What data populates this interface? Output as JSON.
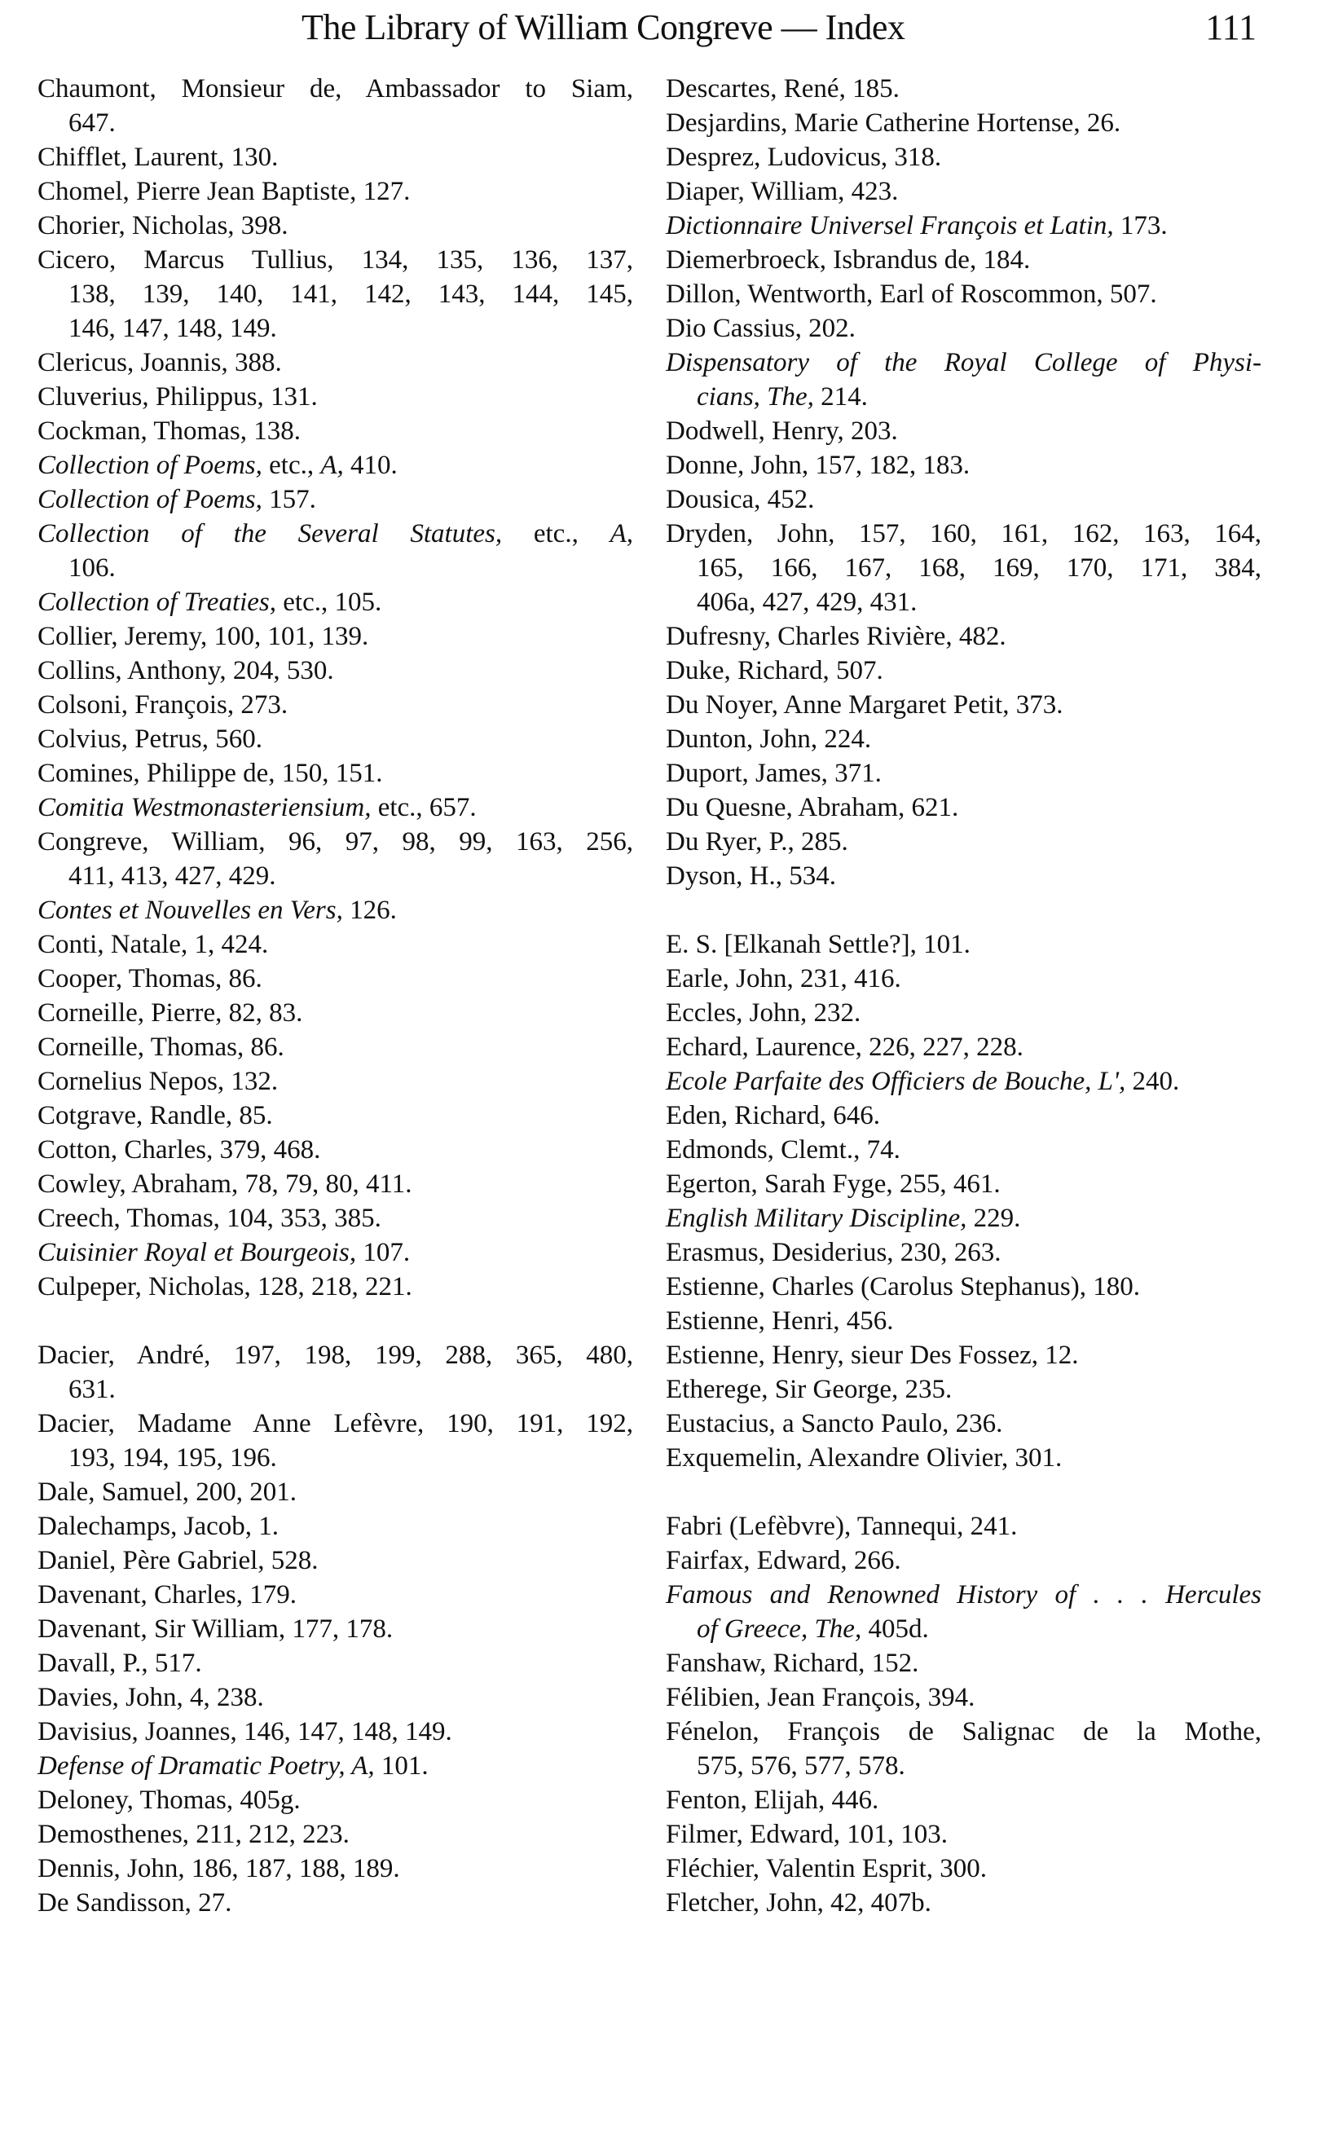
{
  "header": {
    "title": "The Library of William Congreve — Index",
    "page_number": "111"
  },
  "columns": {
    "left": [
      {
        "cont": false,
        "segs": [
          [
            "Chaumont, Monsieur de, Ambassador to Siam,",
            false
          ]
        ]
      },
      {
        "cont": true,
        "segs": [
          [
            "647.",
            false
          ]
        ]
      },
      {
        "cont": false,
        "segs": [
          [
            "Chifflet, Laurent, 130.",
            false
          ]
        ]
      },
      {
        "cont": false,
        "segs": [
          [
            "Chomel, Pierre Jean Baptiste, 127.",
            false
          ]
        ]
      },
      {
        "cont": false,
        "segs": [
          [
            "Chorier, Nicholas, 398.",
            false
          ]
        ]
      },
      {
        "cont": false,
        "segs": [
          [
            "Cicero, Marcus Tullius, 134, 135, 136, 137,",
            false
          ]
        ]
      },
      {
        "cont": true,
        "segs": [
          [
            "138, 139, 140, 141, 142, 143, 144, 145,",
            false
          ]
        ]
      },
      {
        "cont": true,
        "segs": [
          [
            "146, 147, 148, 149.",
            false
          ]
        ]
      },
      {
        "cont": false,
        "segs": [
          [
            "Clericus, Joannis, 388.",
            false
          ]
        ]
      },
      {
        "cont": false,
        "segs": [
          [
            "Cluverius, Philippus, 131.",
            false
          ]
        ]
      },
      {
        "cont": false,
        "segs": [
          [
            "Cockman, Thomas, 138.",
            false
          ]
        ]
      },
      {
        "cont": false,
        "segs": [
          [
            "Collection of Poems,",
            true
          ],
          [
            " etc., ",
            false
          ],
          [
            "A,",
            true
          ],
          [
            " 410.",
            false
          ]
        ]
      },
      {
        "cont": false,
        "segs": [
          [
            "Collection of Poems,",
            true
          ],
          [
            " 157.",
            false
          ]
        ]
      },
      {
        "cont": false,
        "segs": [
          [
            "Collection of the Several Statutes,",
            true
          ],
          [
            " etc., ",
            false
          ],
          [
            "A,",
            true
          ]
        ]
      },
      {
        "cont": true,
        "segs": [
          [
            "106.",
            false
          ]
        ]
      },
      {
        "cont": false,
        "segs": [
          [
            "Collection of Treaties,",
            true
          ],
          [
            " etc., 105.",
            false
          ]
        ]
      },
      {
        "cont": false,
        "segs": [
          [
            "Collier, Jeremy, 100, 101, 139.",
            false
          ]
        ]
      },
      {
        "cont": false,
        "segs": [
          [
            "Collins, Anthony, 204, 530.",
            false
          ]
        ]
      },
      {
        "cont": false,
        "segs": [
          [
            "Colsoni, François, 273.",
            false
          ]
        ]
      },
      {
        "cont": false,
        "segs": [
          [
            "Colvius, Petrus, 560.",
            false
          ]
        ]
      },
      {
        "cont": false,
        "segs": [
          [
            "Comines, Philippe de, 150, 151.",
            false
          ]
        ]
      },
      {
        "cont": false,
        "segs": [
          [
            "Comitia Westmonasteriensium,",
            true
          ],
          [
            " etc., 657.",
            false
          ]
        ]
      },
      {
        "cont": false,
        "segs": [
          [
            "Congreve, William, 96, 97, 98, 99, 163, 256,",
            false
          ]
        ]
      },
      {
        "cont": true,
        "segs": [
          [
            "411, 413, 427, 429.",
            false
          ]
        ]
      },
      {
        "cont": false,
        "segs": [
          [
            "Contes et Nouvelles en Vers,",
            true
          ],
          [
            " 126.",
            false
          ]
        ]
      },
      {
        "cont": false,
        "segs": [
          [
            "Conti, Natale, 1, 424.",
            false
          ]
        ]
      },
      {
        "cont": false,
        "segs": [
          [
            "Cooper, Thomas, 86.",
            false
          ]
        ]
      },
      {
        "cont": false,
        "segs": [
          [
            "Corneille, Pierre, 82, 83.",
            false
          ]
        ]
      },
      {
        "cont": false,
        "segs": [
          [
            "Corneille, Thomas, 86.",
            false
          ]
        ]
      },
      {
        "cont": false,
        "segs": [
          [
            "Cornelius Nepos, 132.",
            false
          ]
        ]
      },
      {
        "cont": false,
        "segs": [
          [
            "Cotgrave, Randle, 85.",
            false
          ]
        ]
      },
      {
        "cont": false,
        "segs": [
          [
            "Cotton, Charles, 379, 468.",
            false
          ]
        ]
      },
      {
        "cont": false,
        "segs": [
          [
            "Cowley, Abraham, 78, 79, 80, 411.",
            false
          ]
        ]
      },
      {
        "cont": false,
        "segs": [
          [
            "Creech, Thomas, 104, 353, 385.",
            false
          ]
        ]
      },
      {
        "cont": false,
        "segs": [
          [
            "Cuisinier Royal et Bourgeois,",
            true
          ],
          [
            " 107.",
            false
          ]
        ]
      },
      {
        "cont": false,
        "segs": [
          [
            "Culpeper, Nicholas, 128, 218, 221.",
            false
          ]
        ]
      },
      {
        "cont": false,
        "segs": []
      },
      {
        "cont": false,
        "segs": [
          [
            "Dacier, André, 197, 198, 199, 288, 365, 480,",
            false
          ]
        ]
      },
      {
        "cont": true,
        "segs": [
          [
            "631.",
            false
          ]
        ]
      },
      {
        "cont": false,
        "segs": [
          [
            "Dacier, Madame Anne Lefèvre, 190, 191, 192,",
            false
          ]
        ]
      },
      {
        "cont": true,
        "segs": [
          [
            "193, 194, 195, 196.",
            false
          ]
        ]
      },
      {
        "cont": false,
        "segs": [
          [
            "Dale, Samuel, 200, 201.",
            false
          ]
        ]
      },
      {
        "cont": false,
        "segs": [
          [
            "Dalechamps, Jacob, 1.",
            false
          ]
        ]
      },
      {
        "cont": false,
        "segs": [
          [
            "Daniel, Père Gabriel, 528.",
            false
          ]
        ]
      },
      {
        "cont": false,
        "segs": [
          [
            "Davenant, Charles, 179.",
            false
          ]
        ]
      },
      {
        "cont": false,
        "segs": [
          [
            "Davenant, Sir William, 177, 178.",
            false
          ]
        ]
      },
      {
        "cont": false,
        "segs": [
          [
            "Davall, P., 517.",
            false
          ]
        ]
      },
      {
        "cont": false,
        "segs": [
          [
            "Davies, John, 4, 238.",
            false
          ]
        ]
      },
      {
        "cont": false,
        "segs": [
          [
            "Davisius, Joannes, 146, 147, 148, 149.",
            false
          ]
        ]
      },
      {
        "cont": false,
        "segs": [
          [
            "Defense of Dramatic Poetry, A,",
            true
          ],
          [
            " 101.",
            false
          ]
        ]
      },
      {
        "cont": false,
        "segs": [
          [
            "Deloney, Thomas, 405g.",
            false
          ]
        ]
      },
      {
        "cont": false,
        "segs": [
          [
            "Demosthenes, 211, 212, 223.",
            false
          ]
        ]
      },
      {
        "cont": false,
        "segs": [
          [
            "Dennis, John, 186, 187, 188, 189.",
            false
          ]
        ]
      },
      {
        "cont": false,
        "segs": [
          [
            "De Sandisson, 27.",
            false
          ]
        ]
      }
    ],
    "right": [
      {
        "cont": false,
        "segs": [
          [
            "Descartes, René, 185.",
            false
          ]
        ]
      },
      {
        "cont": false,
        "segs": [
          [
            "Desjardins, Marie Catherine Hortense, 26.",
            false
          ]
        ]
      },
      {
        "cont": false,
        "segs": [
          [
            "Desprez, Ludovicus, 318.",
            false
          ]
        ]
      },
      {
        "cont": false,
        "segs": [
          [
            "Diaper, William, 423.",
            false
          ]
        ]
      },
      {
        "cont": false,
        "segs": [
          [
            "Dictionnaire Universel François et Latin,",
            true
          ],
          [
            " 173.",
            false
          ]
        ]
      },
      {
        "cont": false,
        "segs": [
          [
            "Diemerbroeck, Isbrandus de, 184.",
            false
          ]
        ]
      },
      {
        "cont": false,
        "segs": [
          [
            "Dillon, Wentworth, Earl of Roscommon, 507.",
            false
          ]
        ]
      },
      {
        "cont": false,
        "segs": [
          [
            "Dio Cassius, 202.",
            false
          ]
        ]
      },
      {
        "cont": false,
        "segs": [
          [
            "Dispensatory of the Royal College of Physi-",
            true
          ]
        ]
      },
      {
        "cont": true,
        "segs": [
          [
            "cians, The,",
            true
          ],
          [
            " 214.",
            false
          ]
        ]
      },
      {
        "cont": false,
        "segs": [
          [
            "Dodwell, Henry, 203.",
            false
          ]
        ]
      },
      {
        "cont": false,
        "segs": [
          [
            "Donne, John, 157, 182, 183.",
            false
          ]
        ]
      },
      {
        "cont": false,
        "segs": [
          [
            "Dousica, 452.",
            false
          ]
        ]
      },
      {
        "cont": false,
        "segs": [
          [
            "Dryden, John, 157, 160, 161, 162, 163, 164,",
            false
          ]
        ]
      },
      {
        "cont": true,
        "segs": [
          [
            "165, 166, 167, 168, 169, 170, 171, 384,",
            false
          ]
        ]
      },
      {
        "cont": true,
        "segs": [
          [
            "406a, 427, 429, 431.",
            false
          ]
        ]
      },
      {
        "cont": false,
        "segs": [
          [
            "Dufresny, Charles Rivière, 482.",
            false
          ]
        ]
      },
      {
        "cont": false,
        "segs": [
          [
            "Duke, Richard, 507.",
            false
          ]
        ]
      },
      {
        "cont": false,
        "segs": [
          [
            "Du Noyer, Anne Margaret Petit, 373.",
            false
          ]
        ]
      },
      {
        "cont": false,
        "segs": [
          [
            "Dunton, John, 224.",
            false
          ]
        ]
      },
      {
        "cont": false,
        "segs": [
          [
            "Duport, James, 371.",
            false
          ]
        ]
      },
      {
        "cont": false,
        "segs": [
          [
            "Du Quesne, Abraham, 621.",
            false
          ]
        ]
      },
      {
        "cont": false,
        "segs": [
          [
            "Du Ryer, P., 285.",
            false
          ]
        ]
      },
      {
        "cont": false,
        "segs": [
          [
            "Dyson, H., 534.",
            false
          ]
        ]
      },
      {
        "cont": false,
        "segs": []
      },
      {
        "cont": false,
        "segs": [
          [
            "E. S. [Elkanah Settle?], 101.",
            false
          ]
        ]
      },
      {
        "cont": false,
        "segs": [
          [
            "Earle, John, 231, 416.",
            false
          ]
        ]
      },
      {
        "cont": false,
        "segs": [
          [
            "Eccles, John, 232.",
            false
          ]
        ]
      },
      {
        "cont": false,
        "segs": [
          [
            "Echard, Laurence, 226, 227, 228.",
            false
          ]
        ]
      },
      {
        "cont": false,
        "segs": [
          [
            "Ecole Parfaite des Officiers de Bouche, L',",
            true
          ],
          [
            " 240.",
            false
          ]
        ]
      },
      {
        "cont": false,
        "segs": [
          [
            "Eden, Richard, 646.",
            false
          ]
        ]
      },
      {
        "cont": false,
        "segs": [
          [
            "Edmonds, Clemt., 74.",
            false
          ]
        ]
      },
      {
        "cont": false,
        "segs": [
          [
            "Egerton, Sarah Fyge, 255, 461.",
            false
          ]
        ]
      },
      {
        "cont": false,
        "segs": [
          [
            "English Military Discipline,",
            true
          ],
          [
            " 229.",
            false
          ]
        ]
      },
      {
        "cont": false,
        "segs": [
          [
            "Erasmus, Desiderius, 230, 263.",
            false
          ]
        ]
      },
      {
        "cont": false,
        "segs": [
          [
            "Estienne, Charles (Carolus Stephanus), 180.",
            false
          ]
        ]
      },
      {
        "cont": false,
        "segs": [
          [
            "Estienne, Henri, 456.",
            false
          ]
        ]
      },
      {
        "cont": false,
        "segs": [
          [
            "Estienne, Henry, sieur Des Fossez, 12.",
            false
          ]
        ]
      },
      {
        "cont": false,
        "segs": [
          [
            "Etherege, Sir George, 235.",
            false
          ]
        ]
      },
      {
        "cont": false,
        "segs": [
          [
            "Eustacius, a Sancto Paulo, 236.",
            false
          ]
        ]
      },
      {
        "cont": false,
        "segs": [
          [
            "Exquemelin, Alexandre Olivier, 301.",
            false
          ]
        ]
      },
      {
        "cont": false,
        "segs": []
      },
      {
        "cont": false,
        "segs": [
          [
            "Fabri (Lefèbvre), Tannequi, 241.",
            false
          ]
        ]
      },
      {
        "cont": false,
        "segs": [
          [
            "Fairfax, Edward, 266.",
            false
          ]
        ]
      },
      {
        "cont": false,
        "segs": [
          [
            "Famous and Renowned History of . . . Hercules",
            true
          ]
        ]
      },
      {
        "cont": true,
        "segs": [
          [
            "of Greece, The,",
            true
          ],
          [
            " 405d.",
            false
          ]
        ]
      },
      {
        "cont": false,
        "segs": [
          [
            "Fanshaw, Richard, 152.",
            false
          ]
        ]
      },
      {
        "cont": false,
        "segs": [
          [
            "Félibien, Jean François, 394.",
            false
          ]
        ]
      },
      {
        "cont": false,
        "segs": [
          [
            "Fénelon, François de Salignac de la Mothe,",
            false
          ]
        ]
      },
      {
        "cont": true,
        "segs": [
          [
            "575, 576, 577, 578.",
            false
          ]
        ]
      },
      {
        "cont": false,
        "segs": [
          [
            "Fenton, Elijah, 446.",
            false
          ]
        ]
      },
      {
        "cont": false,
        "segs": [
          [
            "Filmer, Edward, 101, 103.",
            false
          ]
        ]
      },
      {
        "cont": false,
        "segs": [
          [
            "Fléchier, Valentin Esprit, 300.",
            false
          ]
        ]
      },
      {
        "cont": false,
        "segs": [
          [
            "Fletcher, John, 42, 407b.",
            false
          ]
        ]
      }
    ]
  }
}
